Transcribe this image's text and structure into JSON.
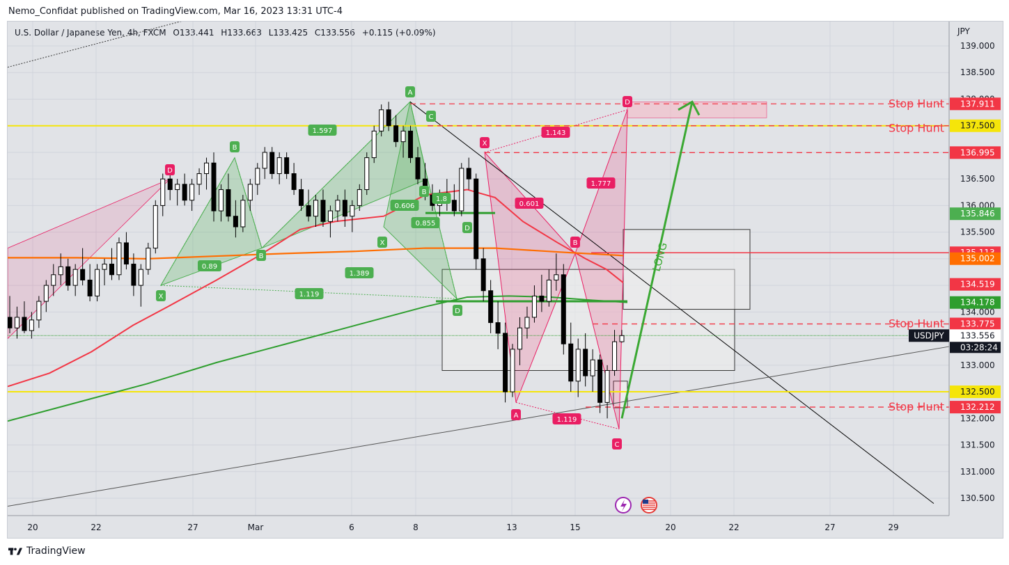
{
  "publisher_line": "Nemo_Confidat published on TradingView.com, Mar 16, 2023 13:31 UTC-4",
  "symbol": {
    "name": "U.S. Dollar / Japanese Yen, 4h, FXCM",
    "open": "O133.441",
    "high": "H133.663",
    "low": "L133.425",
    "close": "C133.556",
    "change": "+0.115 (+0.09%)"
  },
  "footer_brand": "TradingView",
  "colors": {
    "background": "#e1e3e7",
    "bull_candle": "#ffffff",
    "bear_candle": "#000000",
    "ema_red": "#f23645",
    "ema_orange": "#ff6d00",
    "ema_green": "#2e9e2e",
    "yellow_level": "#f5e50a",
    "stop_hunt": "#f23645",
    "green_pattern": "#4caf50",
    "red_pattern": "#e91e63"
  },
  "chart_data": {
    "type": "candlestick",
    "title": "",
    "currency": "JPY",
    "ylim": [
      130.2,
      139.4
    ],
    "y_ticks": [
      "139.000",
      "138.500",
      "138.000",
      "137.500",
      "137.000",
      "136.500",
      "136.000",
      "135.500",
      "135.000",
      "134.500",
      "134.000",
      "133.500",
      "133.000",
      "132.500",
      "132.000",
      "131.500",
      "131.000",
      "130.500"
    ],
    "x_ticks": [
      "20",
      "22",
      "27",
      "Mar",
      "6",
      "8",
      "13",
      "15",
      "20",
      "22",
      "27",
      "29"
    ],
    "price_tags": [
      {
        "label": "137.911",
        "value": 137.911,
        "color": "#f23645"
      },
      {
        "label": "137.500",
        "value": 137.5,
        "color": "#f5e50a"
      },
      {
        "label": "136.995",
        "value": 136.995,
        "color": "#f23645"
      },
      {
        "label": "135.846",
        "value": 135.846,
        "color": "#4caf50"
      },
      {
        "label": "135.113",
        "value": 135.113,
        "color": "#f23645"
      },
      {
        "label": "135.002",
        "value": 135.002,
        "color": "#ff6d00"
      },
      {
        "label": "134.519",
        "value": 134.519,
        "color": "#f23645"
      },
      {
        "label": "134.178",
        "value": 134.178,
        "color": "#2e9e2e"
      },
      {
        "label": "133.775",
        "value": 133.775,
        "color": "#f23645"
      },
      {
        "label": "133.556",
        "value": 133.556,
        "color": "#ffffff"
      },
      {
        "label": "132.500",
        "value": 132.5,
        "color": "#f5e50a"
      },
      {
        "label": "132.212",
        "value": 132.212,
        "color": "#f23645"
      }
    ],
    "current": {
      "symbol": "USDJPY",
      "price": "133.556",
      "countdown": "03:28:24"
    },
    "stop_hunts": [
      {
        "label": "Stop Hunt",
        "value": 137.911
      },
      {
        "label": "Stop Hunt",
        "value": 137.5
      },
      {
        "label": "Stop Hunt",
        "value": 133.775
      },
      {
        "label": "Stop Hunt",
        "value": 132.212
      }
    ],
    "long_label": "LONG",
    "horizontal_levels": [
      {
        "value": 137.5,
        "color": "#f5e50a"
      },
      {
        "value": 132.5,
        "color": "#f5e50a"
      },
      {
        "value": 135.113,
        "color": "#f23645"
      }
    ],
    "green_harmonic_labels": [
      "A",
      "X",
      "B",
      "C",
      "D",
      "A",
      "X",
      "B",
      "D",
      "B",
      "C",
      "D"
    ],
    "green_ratios": [
      "1.597",
      "0.89",
      "1.389",
      "1.119",
      "0.606",
      "0.855",
      "1.8"
    ],
    "red_harmonic_labels": [
      "D",
      "X",
      "B",
      "A",
      "C",
      "D"
    ],
    "red_ratios": [
      "1.143",
      "1.777",
      "0.601",
      "1.119"
    ],
    "candles": [
      [
        133.9,
        134.3,
        133.6,
        133.7
      ],
      [
        133.7,
        134.1,
        133.5,
        133.9
      ],
      [
        133.9,
        134.2,
        133.6,
        133.65
      ],
      [
        133.65,
        134.0,
        133.5,
        133.85
      ],
      [
        133.85,
        134.3,
        133.7,
        134.2
      ],
      [
        134.2,
        134.6,
        134.0,
        134.5
      ],
      [
        134.5,
        134.9,
        134.3,
        134.7
      ],
      [
        134.7,
        135.1,
        134.5,
        134.85
      ],
      [
        134.85,
        135.0,
        134.4,
        134.5
      ],
      [
        134.5,
        134.9,
        134.3,
        134.8
      ],
      [
        134.8,
        135.2,
        134.5,
        134.6
      ],
      [
        134.6,
        134.9,
        134.2,
        134.3
      ],
      [
        134.3,
        134.9,
        134.2,
        134.8
      ],
      [
        134.8,
        135.0,
        134.5,
        134.9
      ],
      [
        134.9,
        135.2,
        134.6,
        134.7
      ],
      [
        134.7,
        135.4,
        134.6,
        135.3
      ],
      [
        135.3,
        135.5,
        134.8,
        134.9
      ],
      [
        134.9,
        135.1,
        134.3,
        134.5
      ],
      [
        134.5,
        134.9,
        134.1,
        134.8
      ],
      [
        134.8,
        135.3,
        134.7,
        135.2
      ],
      [
        135.2,
        136.1,
        135.1,
        136.0
      ],
      [
        136.0,
        136.6,
        135.8,
        136.5
      ],
      [
        136.5,
        136.7,
        136.1,
        136.3
      ],
      [
        136.3,
        136.5,
        136.0,
        136.4
      ],
      [
        136.4,
        136.6,
        136.0,
        136.1
      ],
      [
        136.1,
        136.5,
        135.9,
        136.4
      ],
      [
        136.4,
        136.7,
        136.2,
        136.6
      ],
      [
        136.6,
        136.9,
        136.3,
        136.8
      ],
      [
        136.8,
        137.0,
        135.7,
        135.9
      ],
      [
        135.9,
        136.4,
        135.7,
        136.3
      ],
      [
        136.3,
        136.6,
        135.7,
        135.8
      ],
      [
        135.8,
        136.1,
        135.4,
        135.6
      ],
      [
        135.6,
        136.2,
        135.5,
        136.1
      ],
      [
        136.1,
        136.5,
        135.9,
        136.4
      ],
      [
        136.4,
        136.8,
        136.2,
        136.7
      ],
      [
        136.7,
        137.1,
        136.5,
        137.0
      ],
      [
        137.0,
        137.1,
        136.5,
        136.6
      ],
      [
        136.6,
        137.0,
        136.4,
        136.9
      ],
      [
        136.9,
        137.0,
        136.5,
        136.6
      ],
      [
        136.6,
        136.8,
        136.2,
        136.3
      ],
      [
        136.3,
        136.5,
        135.9,
        136.0
      ],
      [
        136.0,
        136.3,
        135.7,
        135.8
      ],
      [
        135.8,
        136.2,
        135.6,
        136.1
      ],
      [
        136.1,
        136.3,
        135.6,
        135.7
      ],
      [
        135.7,
        136.0,
        135.4,
        135.9
      ],
      [
        135.9,
        136.2,
        135.7,
        136.1
      ],
      [
        136.1,
        136.3,
        135.6,
        135.8
      ],
      [
        135.8,
        136.1,
        135.5,
        136.0
      ],
      [
        136.0,
        136.4,
        135.9,
        136.3
      ],
      [
        136.3,
        137.0,
        136.2,
        136.9
      ],
      [
        136.9,
        137.5,
        136.8,
        137.4
      ],
      [
        137.4,
        137.9,
        137.3,
        137.8
      ],
      [
        137.8,
        137.95,
        137.4,
        137.5
      ],
      [
        137.5,
        137.7,
        137.1,
        137.2
      ],
      [
        137.2,
        137.5,
        136.9,
        137.4
      ],
      [
        137.4,
        137.5,
        136.8,
        136.9
      ],
      [
        136.9,
        137.1,
        136.4,
        136.5
      ],
      [
        136.5,
        136.8,
        136.1,
        136.2
      ],
      [
        136.2,
        136.4,
        135.9,
        136.0
      ],
      [
        136.0,
        136.3,
        135.8,
        136.2
      ],
      [
        136.2,
        136.5,
        135.9,
        136.1
      ],
      [
        136.1,
        136.4,
        135.8,
        135.9
      ],
      [
        135.9,
        136.8,
        135.8,
        136.7
      ],
      [
        136.7,
        136.9,
        136.3,
        136.5
      ],
      [
        136.5,
        136.6,
        134.8,
        135.0
      ],
      [
        135.0,
        135.2,
        134.2,
        134.4
      ],
      [
        134.4,
        134.6,
        133.6,
        133.8
      ],
      [
        133.8,
        134.2,
        133.3,
        133.6
      ],
      [
        133.6,
        133.8,
        132.3,
        132.5
      ],
      [
        132.5,
        133.4,
        132.4,
        133.3
      ],
      [
        133.3,
        133.9,
        133.0,
        133.7
      ],
      [
        133.7,
        134.1,
        133.5,
        133.9
      ],
      [
        133.9,
        134.5,
        133.8,
        134.3
      ],
      [
        134.3,
        134.7,
        134.0,
        134.2
      ],
      [
        134.2,
        134.8,
        134.1,
        134.6
      ],
      [
        134.6,
        135.1,
        134.4,
        134.7
      ],
      [
        134.7,
        134.9,
        133.2,
        133.4
      ],
      [
        133.4,
        133.8,
        132.5,
        132.7
      ],
      [
        132.7,
        133.5,
        132.4,
        133.3
      ],
      [
        133.3,
        133.6,
        132.6,
        132.8
      ],
      [
        132.8,
        133.3,
        132.5,
        133.1
      ],
      [
        133.1,
        133.2,
        132.1,
        132.3
      ],
      [
        132.3,
        133.0,
        132.0,
        132.9
      ],
      [
        132.9,
        133.663,
        132.8,
        133.441
      ],
      [
        133.441,
        133.663,
        133.425,
        133.556
      ]
    ]
  }
}
